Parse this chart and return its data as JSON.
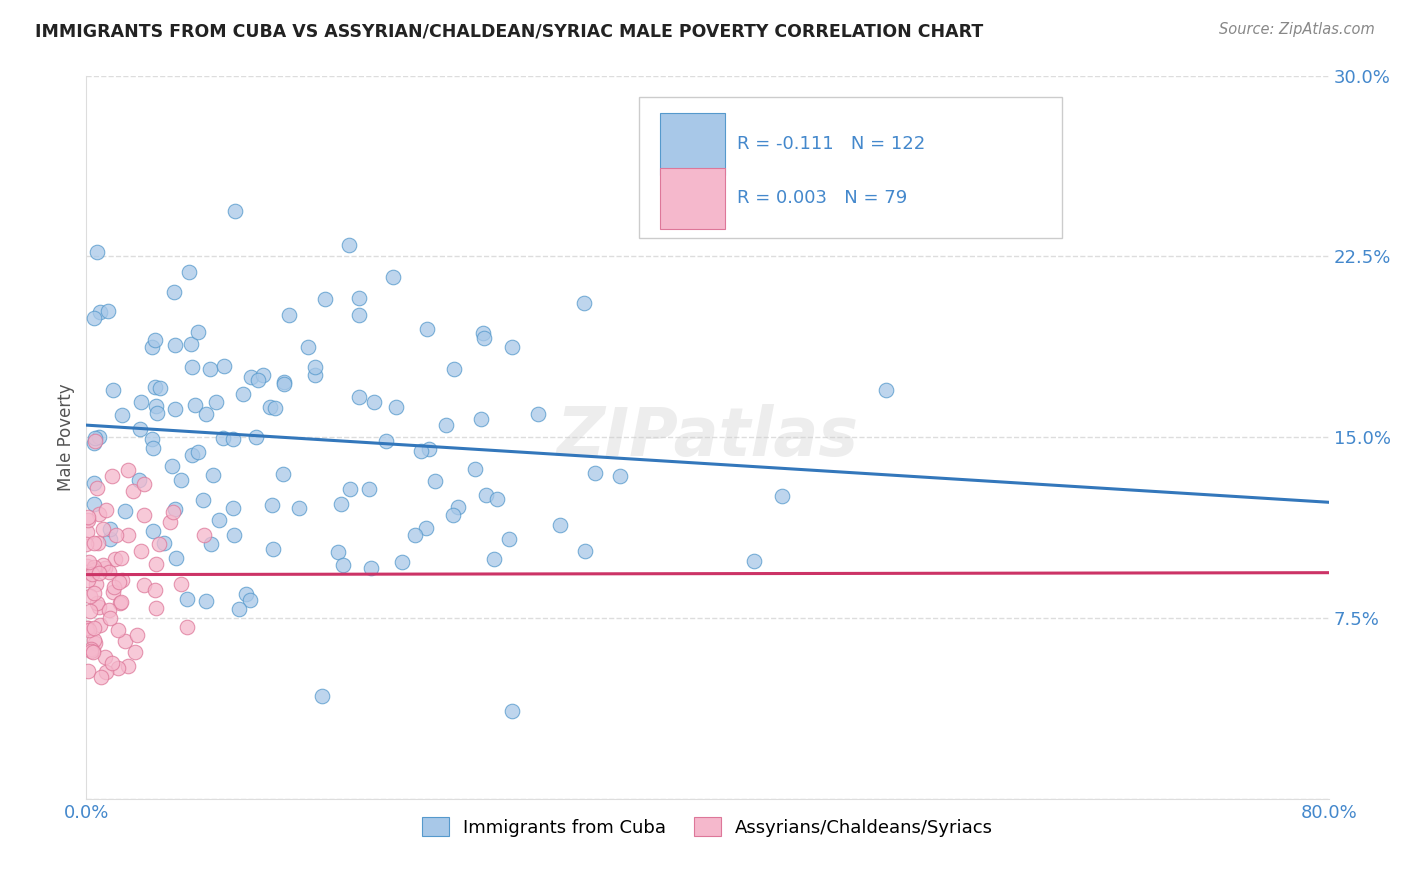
{
  "title": "IMMIGRANTS FROM CUBA VS ASSYRIAN/CHALDEAN/SYRIAC MALE POVERTY CORRELATION CHART",
  "source": "Source: ZipAtlas.com",
  "xlabel_blue": "Immigrants from Cuba",
  "xlabel_pink": "Assyrians/Chaldeans/Syriacs",
  "ylabel": "Male Poverty",
  "xlim": [
    0.0,
    0.8
  ],
  "ylim": [
    0.0,
    0.3
  ],
  "legend_R_blue": "-0.111",
  "legend_N_blue": "122",
  "legend_R_pink": "0.003",
  "legend_N_pink": "79",
  "blue_color": "#a8c8e8",
  "blue_edge_color": "#5599cc",
  "blue_line_color": "#3377bb",
  "pink_color": "#f5b8cc",
  "pink_edge_color": "#dd7799",
  "pink_line_color": "#cc3366",
  "watermark": "ZIPatlas",
  "title_color": "#222222",
  "source_color": "#888888",
  "tick_color": "#4488cc",
  "grid_color": "#dddddd",
  "ylabel_color": "#555555"
}
